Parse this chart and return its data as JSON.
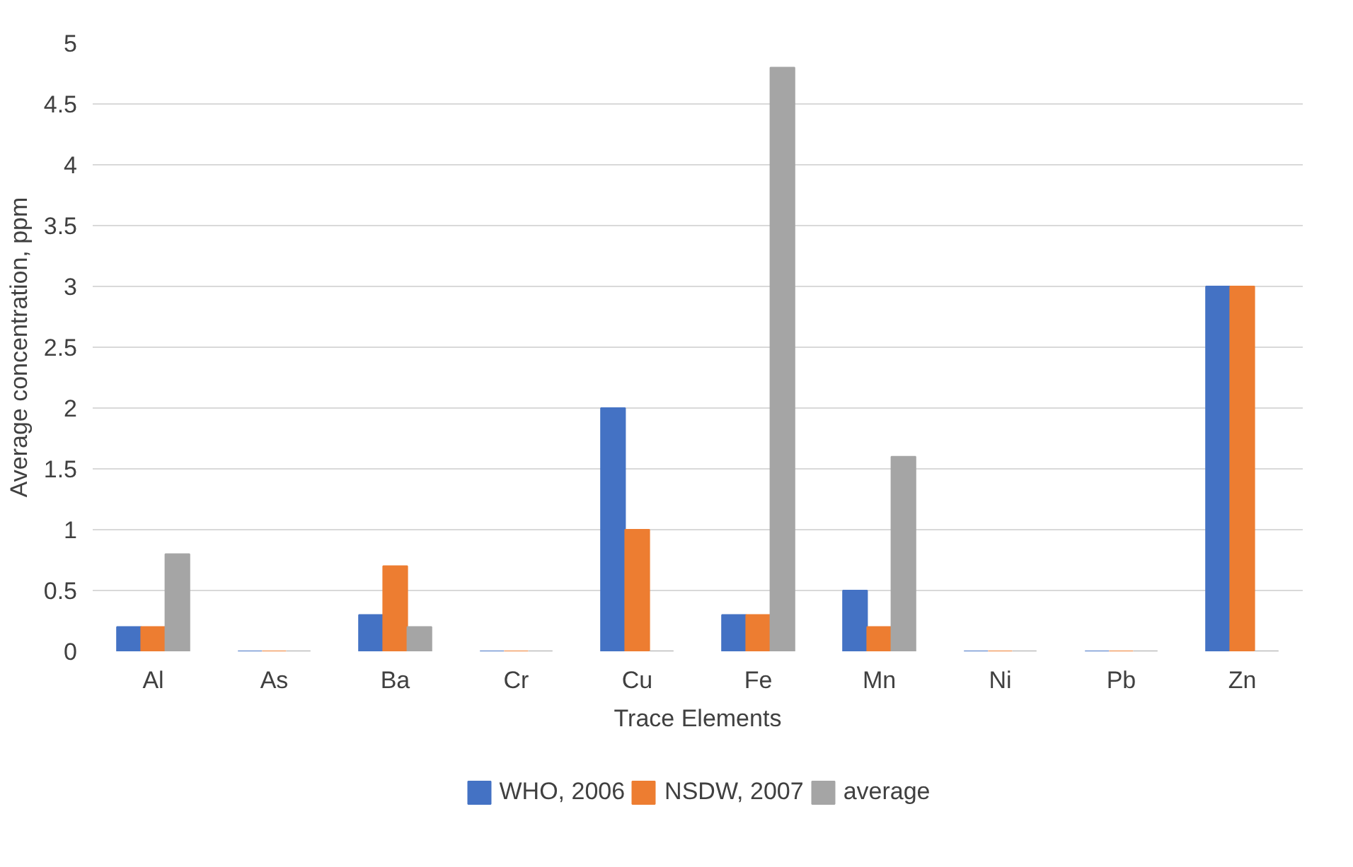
{
  "chart_data": {
    "type": "bar",
    "xlabel": "Trace Elements",
    "ylabel": "Average concentration, ppm",
    "categories": [
      "Al",
      "As",
      "Ba",
      "Cr",
      "Cu",
      "Fe",
      "Mn",
      "Ni",
      "Pb",
      "Zn"
    ],
    "series": [
      {
        "name": "WHO, 2006",
        "color": "#4472c4",
        "values": [
          0.2,
          0,
          0.3,
          0,
          2,
          0.3,
          0.5,
          0,
          0,
          3
        ]
      },
      {
        "name": "NSDW, 2007",
        "color": "#ed7d31",
        "values": [
          0.2,
          0,
          0.7,
          0,
          1,
          0.3,
          0.2,
          0,
          0,
          3
        ]
      },
      {
        "name": "average",
        "color": "#a5a5a5",
        "values": [
          0.8,
          0,
          0.2,
          0,
          0,
          4.8,
          1.6,
          0,
          0,
          0
        ]
      }
    ],
    "ylim": [
      0,
      5
    ],
    "yticks": [
      0,
      0.5,
      1,
      1.5,
      2,
      2.5,
      3,
      3.5,
      4,
      4.5,
      5
    ],
    "grid": "y",
    "legend": "bottom"
  }
}
